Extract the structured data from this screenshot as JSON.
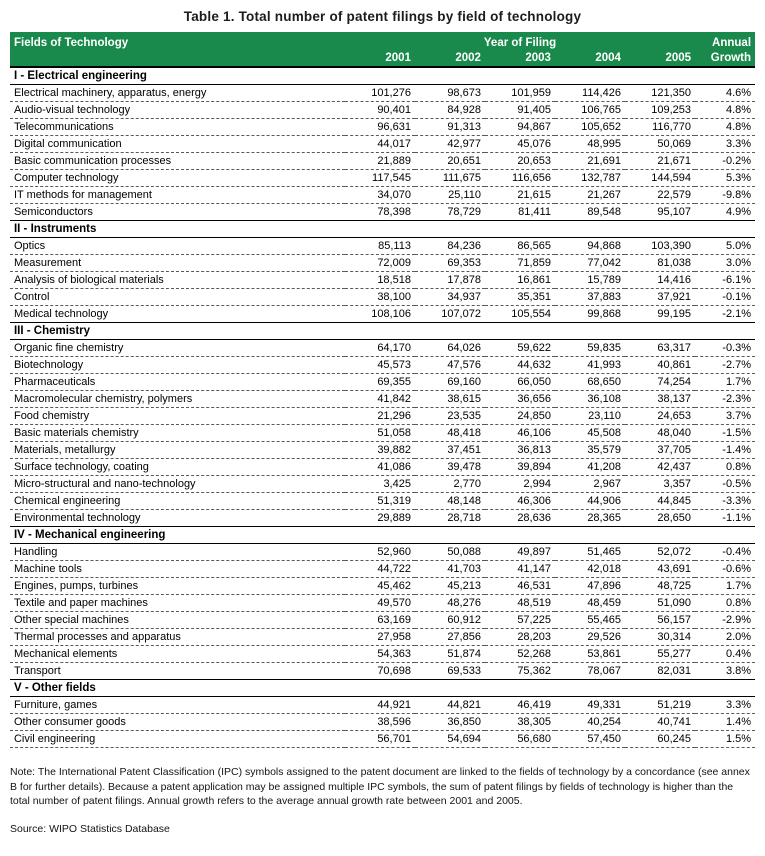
{
  "title": "Table 1. Total number of patent filings by field of technology",
  "colors": {
    "header_green": "#1a8a4c",
    "header_text": "#ffffff"
  },
  "header": {
    "field_col": "Fields of Technology",
    "year_group": "Year of Filing",
    "annual_line1": "Annual",
    "annual_line2": "Growth",
    "years": [
      "2001",
      "2002",
      "2003",
      "2004",
      "2005"
    ]
  },
  "sections": [
    {
      "name": "I - Electrical engineering",
      "rows": [
        {
          "field": "Electrical machinery, apparatus, energy",
          "values": [
            "101,276",
            "98,673",
            "101,959",
            "114,426",
            "121,350"
          ],
          "growth": "4.6%"
        },
        {
          "field": "Audio-visual technology",
          "values": [
            "90,401",
            "84,928",
            "91,405",
            "106,765",
            "109,253"
          ],
          "growth": "4.8%"
        },
        {
          "field": "Telecommunications",
          "values": [
            "96,631",
            "91,313",
            "94,867",
            "105,652",
            "116,770"
          ],
          "growth": "4.8%"
        },
        {
          "field": "Digital communication",
          "values": [
            "44,017",
            "42,977",
            "45,076",
            "48,995",
            "50,069"
          ],
          "growth": "3.3%"
        },
        {
          "field": "Basic communication processes",
          "values": [
            "21,889",
            "20,651",
            "20,653",
            "21,691",
            "21,671"
          ],
          "growth": "-0.2%"
        },
        {
          "field": "Computer technology",
          "values": [
            "117,545",
            "111,675",
            "116,656",
            "132,787",
            "144,594"
          ],
          "growth": "5.3%"
        },
        {
          "field": "IT methods for management",
          "values": [
            "34,070",
            "25,110",
            "21,615",
            "21,267",
            "22,579"
          ],
          "growth": "-9.8%"
        },
        {
          "field": "Semiconductors",
          "values": [
            "78,398",
            "78,729",
            "81,411",
            "89,548",
            "95,107"
          ],
          "growth": "4.9%"
        }
      ]
    },
    {
      "name": "II - Instruments",
      "rows": [
        {
          "field": "Optics",
          "values": [
            "85,113",
            "84,236",
            "86,565",
            "94,868",
            "103,390"
          ],
          "growth": "5.0%"
        },
        {
          "field": "Measurement",
          "values": [
            "72,009",
            "69,353",
            "71,859",
            "77,042",
            "81,038"
          ],
          "growth": "3.0%"
        },
        {
          "field": "Analysis of biological materials",
          "values": [
            "18,518",
            "17,878",
            "16,861",
            "15,789",
            "14,416"
          ],
          "growth": "-6.1%"
        },
        {
          "field": "Control",
          "values": [
            "38,100",
            "34,937",
            "35,351",
            "37,883",
            "37,921"
          ],
          "growth": "-0.1%"
        },
        {
          "field": "Medical technology",
          "values": [
            "108,106",
            "107,072",
            "105,554",
            "99,868",
            "99,195"
          ],
          "growth": "-2.1%"
        }
      ]
    },
    {
      "name": "III - Chemistry",
      "rows": [
        {
          "field": "Organic fine chemistry",
          "values": [
            "64,170",
            "64,026",
            "59,622",
            "59,835",
            "63,317"
          ],
          "growth": "-0.3%"
        },
        {
          "field": "Biotechnology",
          "values": [
            "45,573",
            "47,576",
            "44,632",
            "41,993",
            "40,861"
          ],
          "growth": "-2.7%"
        },
        {
          "field": "Pharmaceuticals",
          "values": [
            "69,355",
            "69,160",
            "66,050",
            "68,650",
            "74,254"
          ],
          "growth": "1.7%"
        },
        {
          "field": "Macromolecular chemistry, polymers",
          "values": [
            "41,842",
            "38,615",
            "36,656",
            "36,108",
            "38,137"
          ],
          "growth": "-2.3%"
        },
        {
          "field": "Food chemistry",
          "values": [
            "21,296",
            "23,535",
            "24,850",
            "23,110",
            "24,653"
          ],
          "growth": "3.7%"
        },
        {
          "field": "Basic materials chemistry",
          "values": [
            "51,058",
            "48,418",
            "46,106",
            "45,508",
            "48,040"
          ],
          "growth": "-1.5%"
        },
        {
          "field": "Materials, metallurgy",
          "values": [
            "39,882",
            "37,451",
            "36,813",
            "35,579",
            "37,705"
          ],
          "growth": "-1.4%"
        },
        {
          "field": "Surface technology, coating",
          "values": [
            "41,086",
            "39,478",
            "39,894",
            "41,208",
            "42,437"
          ],
          "growth": "0.8%"
        },
        {
          "field": "Micro-structural and nano-technology",
          "values": [
            "3,425",
            "2,770",
            "2,994",
            "2,967",
            "3,357"
          ],
          "growth": "-0.5%"
        },
        {
          "field": "Chemical engineering",
          "values": [
            "51,319",
            "48,148",
            "46,306",
            "44,906",
            "44,845"
          ],
          "growth": "-3.3%"
        },
        {
          "field": "Environmental technology",
          "values": [
            "29,889",
            "28,718",
            "28,636",
            "28,365",
            "28,650"
          ],
          "growth": "-1.1%"
        }
      ]
    },
    {
      "name": "IV - Mechanical engineering",
      "rows": [
        {
          "field": "Handling",
          "values": [
            "52,960",
            "50,088",
            "49,897",
            "51,465",
            "52,072"
          ],
          "growth": "-0.4%"
        },
        {
          "field": "Machine tools",
          "values": [
            "44,722",
            "41,703",
            "41,147",
            "42,018",
            "43,691"
          ],
          "growth": "-0.6%"
        },
        {
          "field": "Engines, pumps, turbines",
          "values": [
            "45,462",
            "45,213",
            "46,531",
            "47,896",
            "48,725"
          ],
          "growth": "1.7%"
        },
        {
          "field": "Textile and paper machines",
          "values": [
            "49,570",
            "48,276",
            "48,519",
            "48,459",
            "51,090"
          ],
          "growth": "0.8%"
        },
        {
          "field": "Other special machines",
          "values": [
            "63,169",
            "60,912",
            "57,225",
            "55,465",
            "56,157"
          ],
          "growth": "-2.9%"
        },
        {
          "field": "Thermal processes and apparatus",
          "values": [
            "27,958",
            "27,856",
            "28,203",
            "29,526",
            "30,314"
          ],
          "growth": "2.0%"
        },
        {
          "field": "Mechanical elements",
          "values": [
            "54,363",
            "51,874",
            "52,268",
            "53,861",
            "55,277"
          ],
          "growth": "0.4%"
        },
        {
          "field": "Transport",
          "values": [
            "70,698",
            "69,533",
            "75,362",
            "78,067",
            "82,031"
          ],
          "growth": "3.8%"
        }
      ]
    },
    {
      "name": "V - Other fields",
      "rows": [
        {
          "field": "Furniture, games",
          "values": [
            "44,921",
            "44,821",
            "46,419",
            "49,331",
            "51,219"
          ],
          "growth": "3.3%"
        },
        {
          "field": "Other consumer goods",
          "values": [
            "38,596",
            "36,850",
            "38,305",
            "40,254",
            "40,741"
          ],
          "growth": "1.4%"
        },
        {
          "field": "Civil engineering",
          "values": [
            "56,701",
            "54,694",
            "56,680",
            "57,450",
            "60,245"
          ],
          "growth": "1.5%"
        }
      ]
    }
  ],
  "note": "Note: The International Patent Classification (IPC) symbols assigned to the patent document are linked to the fields of technology by a concordance (see annex B for further details). Because a patent application may be assigned multiple IPC symbols, the sum of patent filings by fields of technology is higher than the total number of patent filings. Annual growth refers to the average annual growth rate between 2001 and 2005.",
  "source": "Source: WIPO Statistics Database"
}
